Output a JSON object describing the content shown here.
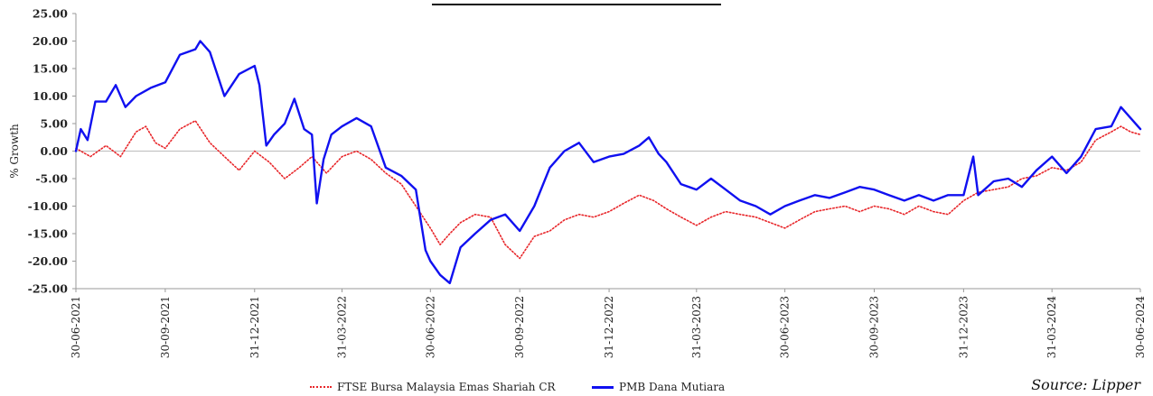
{
  "source_label": "Source: Lipper",
  "chart_data": {
    "type": "line",
    "title": "",
    "xlabel": "",
    "ylabel": "% Growth",
    "ylim": [
      -25,
      25
    ],
    "yticks": [
      "25.00",
      "20.00",
      "15.00",
      "10.00",
      "5.00",
      "0.00",
      "-5.00",
      "-10.00",
      "-15.00",
      "-20.00",
      "-25.00"
    ],
    "xticks": [
      "30-06-2021",
      "30-09-2021",
      "31-12-2021",
      "31-03-2022",
      "30-06-2022",
      "30-09-2022",
      "31-12-2022",
      "31-03-2023",
      "30-06-2023",
      "30-09-2023",
      "31-12-2023",
      "31-03-2024",
      "30-06-2024"
    ],
    "grid": false,
    "legend_position": "bottom",
    "series": [
      {
        "name": "FTSE Bursa Malaysia Emas Shariah CR",
        "color": "#e8262a",
        "style": "dotted",
        "points": [
          [
            "30-06-2021",
            0.5
          ],
          [
            "15-07-2021",
            -1.0
          ],
          [
            "31-07-2021",
            1.0
          ],
          [
            "15-08-2021",
            -1.0
          ],
          [
            "31-08-2021",
            3.5
          ],
          [
            "10-09-2021",
            4.5
          ],
          [
            "20-09-2021",
            1.5
          ],
          [
            "30-09-2021",
            0.5
          ],
          [
            "15-10-2021",
            4.0
          ],
          [
            "31-10-2021",
            5.5
          ],
          [
            "15-11-2021",
            1.5
          ],
          [
            "30-11-2021",
            -1.0
          ],
          [
            "15-12-2021",
            -3.5
          ],
          [
            "31-12-2021",
            0.0
          ],
          [
            "15-01-2022",
            -2.0
          ],
          [
            "31-01-2022",
            -5.0
          ],
          [
            "15-02-2022",
            -3.0
          ],
          [
            "28-02-2022",
            -1.0
          ],
          [
            "15-03-2022",
            -4.0
          ],
          [
            "31-03-2022",
            -1.0
          ],
          [
            "15-04-2022",
            0.0
          ],
          [
            "30-04-2022",
            -1.5
          ],
          [
            "15-05-2022",
            -4.0
          ],
          [
            "31-05-2022",
            -6.0
          ],
          [
            "15-06-2022",
            -10.0
          ],
          [
            "30-06-2022",
            -14.0
          ],
          [
            "10-07-2022",
            -17.0
          ],
          [
            "20-07-2022",
            -15.0
          ],
          [
            "31-07-2022",
            -13.0
          ],
          [
            "15-08-2022",
            -11.5
          ],
          [
            "31-08-2022",
            -12.0
          ],
          [
            "15-09-2022",
            -17.0
          ],
          [
            "30-09-2022",
            -19.5
          ],
          [
            "15-10-2022",
            -15.5
          ],
          [
            "31-10-2022",
            -14.5
          ],
          [
            "15-11-2022",
            -12.5
          ],
          [
            "30-11-2022",
            -11.5
          ],
          [
            "15-12-2022",
            -12.0
          ],
          [
            "31-12-2022",
            -11.0
          ],
          [
            "15-01-2023",
            -9.5
          ],
          [
            "31-01-2023",
            -8.0
          ],
          [
            "15-02-2023",
            -9.0
          ],
          [
            "28-02-2023",
            -10.5
          ],
          [
            "15-03-2023",
            -12.0
          ],
          [
            "31-03-2023",
            -13.5
          ],
          [
            "15-04-2023",
            -12.0
          ],
          [
            "30-04-2023",
            -11.0
          ],
          [
            "15-05-2023",
            -11.5
          ],
          [
            "31-05-2023",
            -12.0
          ],
          [
            "15-06-2023",
            -13.0
          ],
          [
            "30-06-2023",
            -14.0
          ],
          [
            "15-07-2023",
            -12.5
          ],
          [
            "31-07-2023",
            -11.0
          ],
          [
            "15-08-2023",
            -10.5
          ],
          [
            "31-08-2023",
            -10.0
          ],
          [
            "15-09-2023",
            -11.0
          ],
          [
            "30-09-2023",
            -10.0
          ],
          [
            "15-10-2023",
            -10.5
          ],
          [
            "31-10-2023",
            -11.5
          ],
          [
            "15-11-2023",
            -10.0
          ],
          [
            "30-11-2023",
            -11.0
          ],
          [
            "15-12-2023",
            -11.5
          ],
          [
            "31-12-2023",
            -9.0
          ],
          [
            "15-01-2024",
            -7.5
          ],
          [
            "31-01-2024",
            -7.0
          ],
          [
            "15-02-2024",
            -6.5
          ],
          [
            "29-02-2024",
            -5.0
          ],
          [
            "15-03-2024",
            -4.5
          ],
          [
            "31-03-2024",
            -3.0
          ],
          [
            "15-04-2024",
            -3.5
          ],
          [
            "30-04-2024",
            -2.0
          ],
          [
            "15-05-2024",
            2.0
          ],
          [
            "31-05-2024",
            3.5
          ],
          [
            "10-06-2024",
            4.5
          ],
          [
            "20-06-2024",
            3.5
          ],
          [
            "30-06-2024",
            3.0
          ]
        ]
      },
      {
        "name": "PMB Dana Mutiara",
        "color": "#1010f0",
        "style": "solid",
        "points": [
          [
            "30-06-2021",
            0.0
          ],
          [
            "05-07-2021",
            4.0
          ],
          [
            "12-07-2021",
            2.0
          ],
          [
            "20-07-2021",
            9.0
          ],
          [
            "31-07-2021",
            9.0
          ],
          [
            "10-08-2021",
            12.0
          ],
          [
            "20-08-2021",
            8.0
          ],
          [
            "31-08-2021",
            10.0
          ],
          [
            "15-09-2021",
            11.5
          ],
          [
            "30-09-2021",
            12.5
          ],
          [
            "15-10-2021",
            17.5
          ],
          [
            "31-10-2021",
            18.5
          ],
          [
            "05-11-2021",
            20.0
          ],
          [
            "15-11-2021",
            18.0
          ],
          [
            "30-11-2021",
            10.0
          ],
          [
            "15-12-2021",
            14.0
          ],
          [
            "31-12-2021",
            15.5
          ],
          [
            "05-01-2022",
            12.0
          ],
          [
            "12-01-2022",
            1.0
          ],
          [
            "20-01-2022",
            3.0
          ],
          [
            "31-01-2022",
            5.0
          ],
          [
            "10-02-2022",
            9.5
          ],
          [
            "20-02-2022",
            4.0
          ],
          [
            "28-02-2022",
            3.0
          ],
          [
            "05-03-2022",
            -9.5
          ],
          [
            "12-03-2022",
            -1.5
          ],
          [
            "20-03-2022",
            3.0
          ],
          [
            "31-03-2022",
            4.5
          ],
          [
            "15-04-2022",
            6.0
          ],
          [
            "30-04-2022",
            4.5
          ],
          [
            "15-05-2022",
            -3.0
          ],
          [
            "31-05-2022",
            -4.5
          ],
          [
            "15-06-2022",
            -7.0
          ],
          [
            "25-06-2022",
            -18.0
          ],
          [
            "30-06-2022",
            -20.0
          ],
          [
            "10-07-2022",
            -22.5
          ],
          [
            "20-07-2022",
            -24.0
          ],
          [
            "31-07-2022",
            -17.5
          ],
          [
            "15-08-2022",
            -15.0
          ],
          [
            "31-08-2022",
            -12.5
          ],
          [
            "15-09-2022",
            -11.5
          ],
          [
            "30-09-2022",
            -14.5
          ],
          [
            "15-10-2022",
            -10.0
          ],
          [
            "31-10-2022",
            -3.0
          ],
          [
            "15-11-2022",
            0.0
          ],
          [
            "30-11-2022",
            1.5
          ],
          [
            "15-12-2022",
            -2.0
          ],
          [
            "31-12-2022",
            -1.0
          ],
          [
            "15-01-2023",
            -0.5
          ],
          [
            "31-01-2023",
            1.0
          ],
          [
            "10-02-2023",
            2.5
          ],
          [
            "20-02-2023",
            -0.5
          ],
          [
            "28-02-2023",
            -2.0
          ],
          [
            "15-03-2023",
            -6.0
          ],
          [
            "31-03-2023",
            -7.0
          ],
          [
            "15-04-2023",
            -5.0
          ],
          [
            "30-04-2023",
            -7.0
          ],
          [
            "15-05-2023",
            -9.0
          ],
          [
            "31-05-2023",
            -10.0
          ],
          [
            "15-06-2023",
            -11.5
          ],
          [
            "30-06-2023",
            -10.0
          ],
          [
            "15-07-2023",
            -9.0
          ],
          [
            "31-07-2023",
            -8.0
          ],
          [
            "15-08-2023",
            -8.5
          ],
          [
            "31-08-2023",
            -7.5
          ],
          [
            "15-09-2023",
            -6.5
          ],
          [
            "30-09-2023",
            -7.0
          ],
          [
            "15-10-2023",
            -8.0
          ],
          [
            "31-10-2023",
            -9.0
          ],
          [
            "15-11-2023",
            -8.0
          ],
          [
            "30-11-2023",
            -9.0
          ],
          [
            "15-12-2023",
            -8.0
          ],
          [
            "31-12-2023",
            -8.0
          ],
          [
            "10-01-2024",
            -1.0
          ],
          [
            "15-01-2024",
            -8.0
          ],
          [
            "31-01-2024",
            -5.5
          ],
          [
            "15-02-2024",
            -5.0
          ],
          [
            "29-02-2024",
            -6.5
          ],
          [
            "15-03-2024",
            -3.5
          ],
          [
            "31-03-2024",
            -1.0
          ],
          [
            "15-04-2024",
            -4.0
          ],
          [
            "30-04-2024",
            -1.0
          ],
          [
            "15-05-2024",
            4.0
          ],
          [
            "31-05-2024",
            4.5
          ],
          [
            "10-06-2024",
            8.0
          ],
          [
            "20-06-2024",
            6.0
          ],
          [
            "30-06-2024",
            4.0
          ]
        ]
      }
    ]
  }
}
